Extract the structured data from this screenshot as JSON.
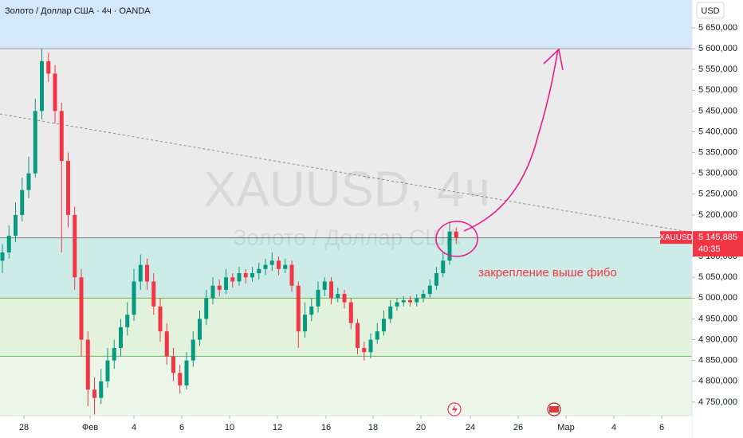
{
  "chart_data": {
    "type": "candlestick",
    "title": "Золото / Доллар США · 4ч · OANDA",
    "watermark": "XAUUSD, 4ч",
    "watermark_subtitle": "Золото / Доллар США",
    "y_axis_label": "USD",
    "annotation": "закрепление выше фибо",
    "symbol": "XAUUSD",
    "last_price": {
      "value": 5145.885,
      "label": "5 145,885"
    },
    "countdown": "40:35",
    "up_color": "#089981",
    "down_color": "#f23645",
    "x": [
      0.1,
      0.375,
      0.65,
      0.925,
      1.2,
      1.475,
      1.75,
      2.025,
      2.3,
      2.575,
      2.85,
      3.125,
      3.4,
      3.675,
      3.95,
      4.225,
      4.5,
      4.775,
      5.05,
      5.325,
      5.6,
      5.875,
      6.15,
      6.425,
      6.7,
      6.975,
      7.25,
      7.525,
      7.8,
      8.075,
      8.35,
      8.625,
      8.9,
      9.175,
      9.45,
      9.725,
      10,
      10.275,
      10.55,
      10.825,
      11.1,
      11.375,
      11.65,
      11.925,
      12.2,
      12.475,
      12.75,
      13.025,
      13.3,
      13.575,
      13.85,
      14.125,
      14.4,
      14.675,
      14.95,
      15.225,
      15.5,
      15.775,
      16.05,
      16.325,
      16.6,
      16.875,
      17.15,
      17.425,
      17.7,
      17.975,
      18.25,
      18.525,
      18.8,
      19.075
    ],
    "open": [
      5090,
      5110,
      5150,
      5200,
      5260,
      5300,
      5450,
      5570,
      5540,
      5450,
      5330,
      5200,
      5050,
      4900,
      4780,
      4760,
      4800,
      4850,
      4880,
      4930,
      4960,
      5040,
      5080,
      5040,
      4980,
      4920,
      4860,
      4820,
      4790,
      4850,
      4900,
      4950,
      5000,
      5030,
      5020,
      5050,
      5040,
      5060,
      5050,
      5060,
      5070,
      5080,
      5090,
      5070,
      5080,
      5030,
      4920,
      4960,
      4980,
      5020,
      5040,
      5000,
      5010,
      4990,
      4940,
      4880,
      4870,
      4900,
      4920,
      4950,
      4980,
      4990,
      4995,
      4990,
      5000,
      5010,
      5030,
      5060,
      5090,
      5160
    ],
    "high": [
      5130,
      5175,
      5230,
      5290,
      5340,
      5480,
      5600,
      5590,
      5560,
      5470,
      5350,
      5220,
      5070,
      4920,
      4810,
      4830,
      4880,
      4900,
      4950,
      4990,
      5070,
      5105,
      5095,
      5060,
      5000,
      4940,
      4880,
      4840,
      4870,
      4920,
      4970,
      5020,
      5050,
      5045,
      5070,
      5060,
      5075,
      5070,
      5075,
      5085,
      5095,
      5110,
      5100,
      5095,
      5090,
      5040,
      4990,
      5000,
      5040,
      5050,
      5050,
      5025,
      5020,
      5000,
      4950,
      4895,
      4915,
      4940,
      4970,
      4995,
      5000,
      5005,
      5005,
      5010,
      5020,
      5045,
      5075,
      5110,
      5180,
      5170
    ],
    "low": [
      5060,
      5095,
      5135,
      5185,
      5240,
      5290,
      5430,
      5520,
      5420,
      5110,
      5170,
      5020,
      4860,
      4740,
      4720,
      4745,
      4785,
      4830,
      4860,
      4910,
      4945,
      5020,
      5020,
      4960,
      4895,
      4840,
      4800,
      4770,
      4780,
      4835,
      4885,
      4935,
      4985,
      5005,
      5010,
      5025,
      5030,
      5035,
      5040,
      5045,
      5055,
      5065,
      5055,
      5060,
      5015,
      4880,
      4905,
      4945,
      4965,
      5005,
      4985,
      4990,
      4975,
      4925,
      4865,
      4850,
      4855,
      4890,
      4910,
      4940,
      4970,
      4980,
      4980,
      4980,
      4990,
      5000,
      5020,
      5050,
      5080,
      5130
    ],
    "close": [
      5110,
      5150,
      5200,
      5260,
      5300,
      5450,
      5570,
      5540,
      5450,
      5330,
      5200,
      5050,
      4900,
      4780,
      4760,
      4800,
      4850,
      4880,
      4930,
      4960,
      5040,
      5080,
      5040,
      4980,
      4920,
      4860,
      4820,
      4790,
      4850,
      4900,
      4950,
      5000,
      5030,
      5020,
      5050,
      5040,
      5060,
      5050,
      5060,
      5070,
      5080,
      5090,
      5070,
      5080,
      5030,
      4920,
      4960,
      4980,
      5020,
      5040,
      5000,
      5010,
      4990,
      4940,
      4880,
      4870,
      4900,
      4920,
      4950,
      4980,
      4990,
      4995,
      4990,
      5000,
      5010,
      5030,
      5060,
      5090,
      5160,
      5145.885
    ],
    "xlim": [
      0,
      28.933
    ],
    "xticks": [
      {
        "value": 1,
        "label": "28"
      },
      {
        "value": 3.767,
        "label": "Фев"
      },
      {
        "value": 5.6,
        "label": "4"
      },
      {
        "value": 7.6,
        "label": "6"
      },
      {
        "value": 9.6,
        "label": "10"
      },
      {
        "value": 11.6,
        "label": "12"
      },
      {
        "value": 13.633,
        "label": "16"
      },
      {
        "value": 15.6,
        "label": "18"
      },
      {
        "value": 17.6,
        "label": "20"
      },
      {
        "value": 19.667,
        "label": "24"
      },
      {
        "value": 21.667,
        "label": "26"
      },
      {
        "value": 23.667,
        "label": "Мар"
      },
      {
        "value": 25.667,
        "label": "4"
      },
      {
        "value": 27.667,
        "label": "6"
      }
    ],
    "ylim": [
      4721,
      5717
    ],
    "yticks": [
      {
        "value": 4750,
        "label": "4 750,000"
      },
      {
        "value": 4800,
        "label": "4 800,000"
      },
      {
        "value": 4850,
        "label": "4 850,000"
      },
      {
        "value": 4900,
        "label": "4 900,000"
      },
      {
        "value": 4950,
        "label": "4 950,000"
      },
      {
        "value": 5000,
        "label": "5 000,000"
      },
      {
        "value": 5050,
        "label": "5 050,000"
      },
      {
        "value": 5100,
        "label": "5 100,000"
      },
      {
        "value": 5150,
        "label": "5 150,000"
      },
      {
        "value": 5200,
        "label": "5 200,000"
      },
      {
        "value": 5250,
        "label": "5 250,000"
      },
      {
        "value": 5300,
        "label": "5 300,000"
      },
      {
        "value": 5350,
        "label": "5 350,000"
      },
      {
        "value": 5400,
        "label": "5 400,000"
      },
      {
        "value": 5450,
        "label": "5 450,000"
      },
      {
        "value": 5500,
        "label": "5 500,000"
      },
      {
        "value": 5550,
        "label": "5 550,000"
      },
      {
        "value": 5600,
        "label": "5 600,000"
      },
      {
        "value": 5650,
        "label": "5 650,000"
      }
    ],
    "levels": [
      5600,
      5145,
      5000,
      4860
    ],
    "level_colors": [
      "#9e9e9e",
      "#7a7a7a",
      "#7cb342",
      "#66bb6a"
    ],
    "band_colors": [
      "#d3e8fb",
      "#ebebeb",
      "#cdece7",
      "#e2f2dc",
      "#ecf6e8"
    ],
    "trendline": {
      "x": [
        0,
        28.933
      ],
      "y": [
        5443,
        5158
      ]
    }
  }
}
